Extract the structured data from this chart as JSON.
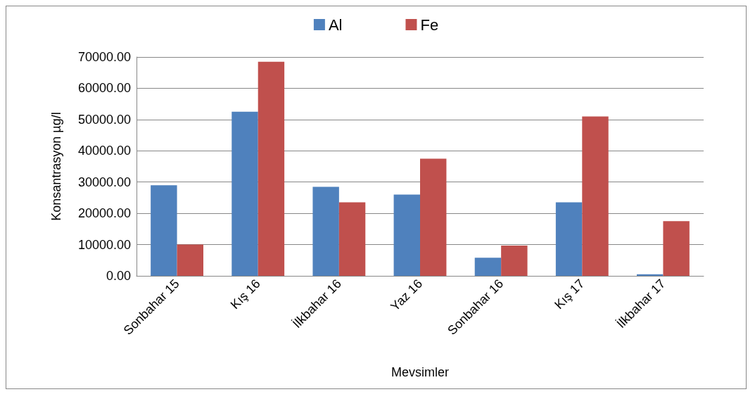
{
  "chart_data": {
    "type": "bar",
    "xlabel": "Mevsimler",
    "ylabel": "Konsantrasyon µg/l",
    "categories": [
      "Sonbahar 15",
      "Kış 16",
      "İlkbahar 16",
      "Yaz 16",
      "Sonbahar 16",
      "Kış 17",
      "İlkbahar 17"
    ],
    "series": [
      {
        "name": "Al",
        "color": "#4f81bd",
        "values": [
          29000,
          52500,
          28500,
          26000,
          5800,
          23500,
          500
        ]
      },
      {
        "name": "Fe",
        "color": "#c0504d",
        "values": [
          10000,
          68500,
          23500,
          37500,
          9700,
          51000,
          17500
        ]
      }
    ],
    "ylim": [
      0,
      70000
    ],
    "yticks": [
      {
        "value": 0,
        "label": "0.00"
      },
      {
        "value": 10000,
        "label": "10000.00"
      },
      {
        "value": 20000,
        "label": "20000.00"
      },
      {
        "value": 30000,
        "label": "30000.00"
      },
      {
        "value": 40000,
        "label": "40000.00"
      },
      {
        "value": 50000,
        "label": "50000.00"
      },
      {
        "value": 60000,
        "label": "60000.00"
      },
      {
        "value": 70000,
        "label": "70000.00"
      }
    ],
    "grid": true,
    "legend": "top"
  }
}
